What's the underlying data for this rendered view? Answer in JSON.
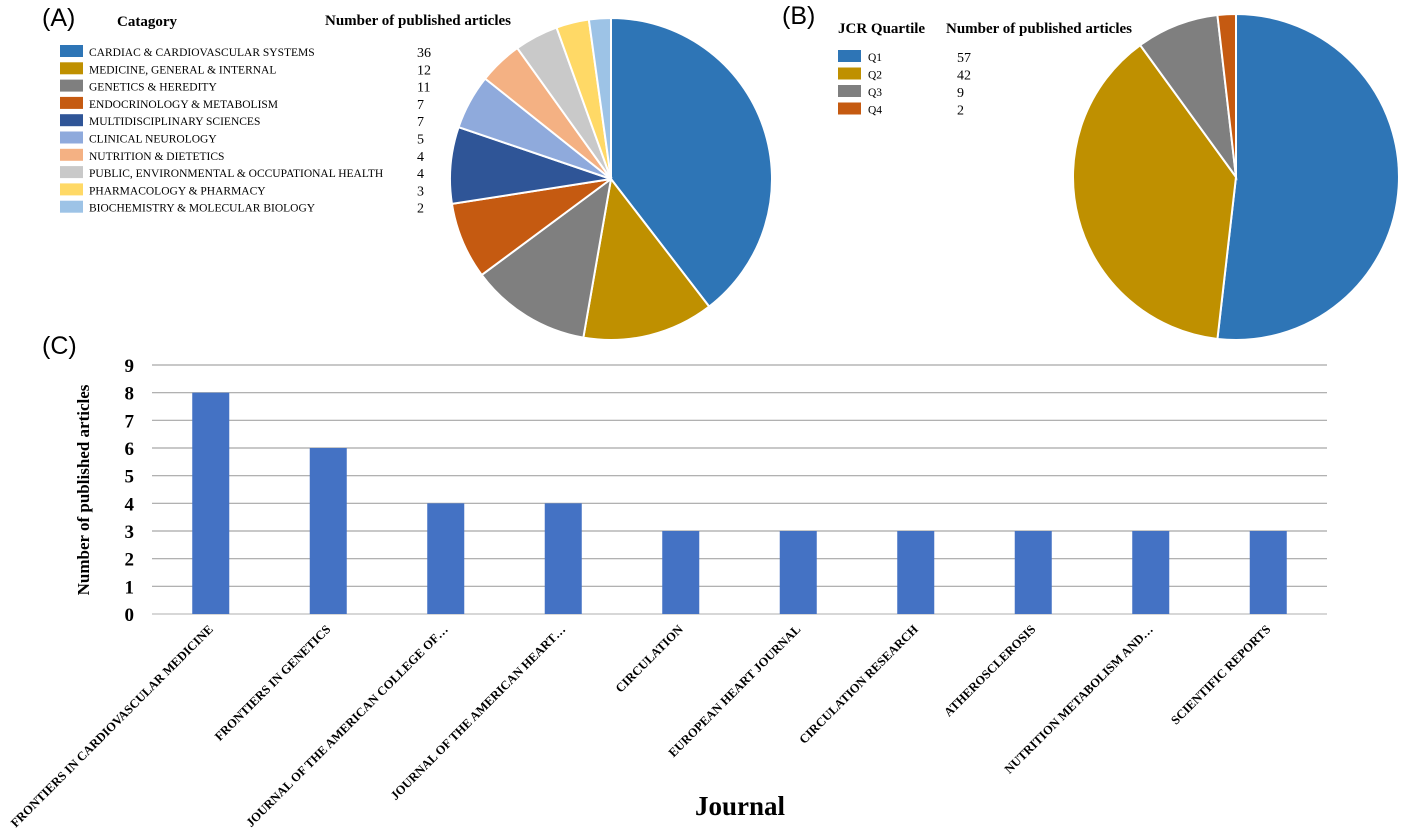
{
  "panels": {
    "a": "(A)",
    "b": "(B)",
    "c": "(C)"
  },
  "chart_data": [
    {
      "type": "pie",
      "panel": "(A)",
      "legend_header": "Catagory",
      "value_header": "Number of published articles",
      "slices": [
        {
          "label": "CARDIAC & CARDIOVASCULAR SYSTEMS",
          "value": 36,
          "color": "#2E75B6"
        },
        {
          "label": "MEDICINE, GENERAL & INTERNAL",
          "value": 12,
          "color": "#BF9000"
        },
        {
          "label": "GENETICS & HEREDITY",
          "value": 11,
          "color": "#7F7F7F"
        },
        {
          "label": "ENDOCRINOLOGY & METABOLISM",
          "value": 7,
          "color": "#C55A11"
        },
        {
          "label": "MULTIDISCIPLINARY SCIENCES",
          "value": 7,
          "color": "#2F5597"
        },
        {
          "label": "CLINICAL NEUROLOGY",
          "value": 5,
          "color": "#8FAADC"
        },
        {
          "label": "NUTRITION & DIETETICS",
          "value": 4,
          "color": "#F4B183"
        },
        {
          "label": "PUBLIC, ENVIRONMENTAL & OCCUPATIONAL HEALTH",
          "value": 4,
          "color": "#C9C9C9"
        },
        {
          "label": "PHARMACOLOGY & PHARMACY",
          "value": 3,
          "color": "#FFD966"
        },
        {
          "label": "BIOCHEMISTRY & MOLECULAR BIOLOGY",
          "value": 2,
          "color": "#9DC3E6"
        }
      ]
    },
    {
      "type": "pie",
      "panel": "(B)",
      "legend_header": "JCR Quartile",
      "value_header": "Number of published articles",
      "slices": [
        {
          "label": "Q1",
          "value": 57,
          "color": "#2E75B6"
        },
        {
          "label": "Q2",
          "value": 42,
          "color": "#BF9000"
        },
        {
          "label": "Q3",
          "value": 9,
          "color": "#7F7F7F"
        },
        {
          "label": "Q4",
          "value": 2,
          "color": "#C55A11"
        }
      ]
    },
    {
      "type": "bar",
      "panel": "(C)",
      "categories": [
        "FRONTIERS IN CARDIOVASCULAR MEDICINE",
        "FRONTIERS IN GENETICS",
        "JOURNAL OF THE AMERICAN COLLEGE OF…",
        "JOURNAL OF THE AMERICAN HEART…",
        "CIRCULATION",
        "EUROPEAN HEART JOURNAL",
        "CIRCULATION RESEARCH",
        "ATHEROSCLEROSIS",
        "NUTRITION METABOLISM AND…",
        "SCIENTIFIC REPORTS"
      ],
      "values": [
        8,
        6,
        4,
        4,
        3,
        3,
        3,
        3,
        3,
        3
      ],
      "xlabel": "Journal",
      "ylabel": "Number of published articles",
      "ylim": [
        0,
        9
      ],
      "yticks": [
        0,
        1,
        2,
        3,
        4,
        5,
        6,
        7,
        8,
        9
      ],
      "bar_color": "#4472C4",
      "grid": true
    }
  ]
}
